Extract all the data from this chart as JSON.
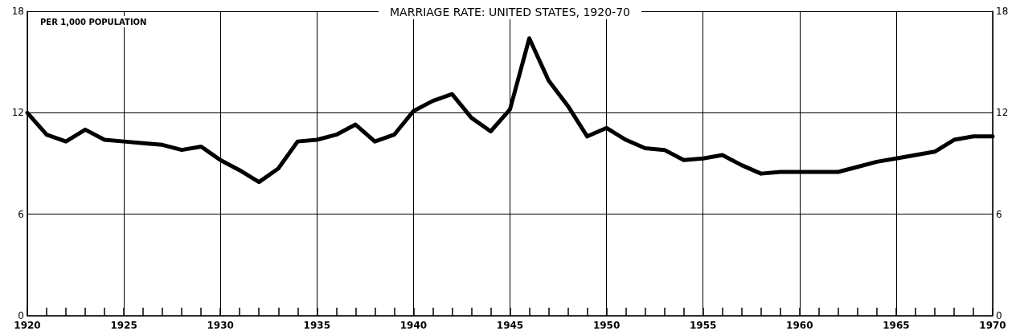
{
  "chart_data": {
    "type": "line",
    "title": "MARRIAGE RATE: UNITED STATES, 1920-70",
    "ylabel": "PER 1,000 POPULATION",
    "x": [
      1920,
      1921,
      1922,
      1923,
      1924,
      1925,
      1926,
      1927,
      1928,
      1929,
      1930,
      1931,
      1932,
      1933,
      1934,
      1935,
      1936,
      1937,
      1938,
      1939,
      1940,
      1941,
      1942,
      1943,
      1944,
      1945,
      1946,
      1947,
      1948,
      1949,
      1950,
      1951,
      1952,
      1953,
      1954,
      1955,
      1956,
      1957,
      1958,
      1959,
      1960,
      1961,
      1962,
      1963,
      1964,
      1965,
      1966,
      1967,
      1968,
      1969,
      1970
    ],
    "series": [
      {
        "color": "#000000",
        "values": [
          12.0,
          10.7,
          10.3,
          11.0,
          10.4,
          10.3,
          10.2,
          10.1,
          9.8,
          10.0,
          9.2,
          8.6,
          7.9,
          8.7,
          10.3,
          10.4,
          10.7,
          11.3,
          10.3,
          10.7,
          12.1,
          12.7,
          13.1,
          11.7,
          10.9,
          12.2,
          16.4,
          13.9,
          12.4,
          10.6,
          11.1,
          10.4,
          9.9,
          9.8,
          9.2,
          9.3,
          9.5,
          8.9,
          8.4,
          8.5,
          8.5,
          8.5,
          8.5,
          8.8,
          9.1,
          9.3,
          9.5,
          9.7,
          10.4,
          10.6,
          10.6
        ]
      }
    ],
    "xlim": [
      1920,
      1970
    ],
    "xticks": [
      1920,
      {
        "value": 1921,
        "label": null
      },
      {
        "value": 1922,
        "label": null
      },
      {
        "value": 1923,
        "label": null
      },
      {
        "value": 1924,
        "label": null
      },
      1925,
      {
        "value": 1926,
        "label": null
      },
      {
        "value": 1927,
        "label": null
      },
      {
        "value": 1928,
        "label": null
      },
      {
        "value": 1929,
        "label": null
      },
      1930,
      {
        "value": 1931,
        "label": null
      },
      {
        "value": 1932,
        "label": null
      },
      {
        "value": 1933,
        "label": null
      },
      {
        "value": 1934,
        "label": null
      },
      1935,
      {
        "value": 1936,
        "label": null
      },
      {
        "value": 1937,
        "label": null
      },
      {
        "value": 1938,
        "label": null
      },
      {
        "value": 1939,
        "label": null
      },
      1940,
      {
        "value": 1941,
        "label": null
      },
      {
        "value": 1942,
        "label": null
      },
      {
        "value": 1943,
        "label": null
      },
      {
        "value": 1944,
        "label": null
      },
      1945,
      {
        "value": 1946,
        "label": null
      },
      {
        "value": 1947,
        "label": null
      },
      {
        "value": 1948,
        "label": null
      },
      {
        "value": 1949,
        "label": null
      },
      1950,
      {
        "value": 1951,
        "label": null
      },
      {
        "value": 1952,
        "label": null
      },
      {
        "value": 1953,
        "label": null
      },
      {
        "value": 1954,
        "label": null
      },
      1955,
      {
        "value": 1956,
        "label": null
      },
      {
        "value": 1957,
        "label": null
      },
      {
        "value": 1958,
        "label": null
      },
      {
        "value": 1959,
        "label": null
      },
      1960,
      {
        "value": 1961,
        "label": null
      },
      {
        "value": 1962,
        "label": null
      },
      {
        "value": 1963,
        "label": null
      },
      {
        "value": 1964,
        "label": null
      },
      1965,
      {
        "value": 1966,
        "label": null
      },
      {
        "value": 1967,
        "label": null
      },
      {
        "value": 1968,
        "label": null
      },
      {
        "value": 1969,
        "label": null
      },
      1970
    ],
    "ylim": [
      0,
      18
    ],
    "yticks": [
      0,
      6,
      12,
      18
    ],
    "y2lim": [
      0,
      18
    ],
    "y2ticks": [
      0,
      6,
      12,
      18
    ],
    "grid": true,
    "marker": "none",
    "line_style": "solid"
  }
}
